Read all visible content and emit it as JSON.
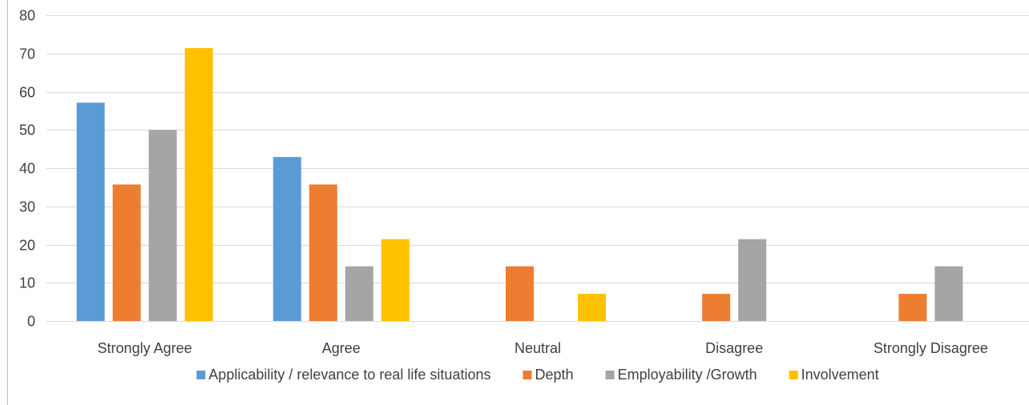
{
  "chart_data": {
    "type": "bar",
    "categories": [
      "Strongly Agree",
      "Agree",
      "Neutral",
      "Disagree",
      "Strongly Disagree"
    ],
    "series": [
      {
        "name": "Applicability / relevance to real life situations",
        "color": "#5B9BD5",
        "values": [
          57.1,
          42.9,
          0,
          0,
          0
        ]
      },
      {
        "name": "Depth",
        "color": "#ED7D31",
        "values": [
          35.7,
          35.7,
          14.3,
          7.1,
          7.1
        ]
      },
      {
        "name": "Employability /Growth",
        "color": "#A5A5A5",
        "values": [
          50,
          14.3,
          0,
          21.4,
          14.3
        ]
      },
      {
        "name": "Involvement",
        "color": "#FFC000",
        "values": [
          71.4,
          21.4,
          7.1,
          0,
          0
        ]
      }
    ],
    "ylim": [
      0,
      80
    ],
    "yticks": [
      0,
      10,
      20,
      30,
      40,
      50,
      60,
      70,
      80
    ],
    "grid": true,
    "legend_position": "bottom",
    "gridline_color": "#D9D9D9",
    "axis_color": "#BFBFBF"
  }
}
